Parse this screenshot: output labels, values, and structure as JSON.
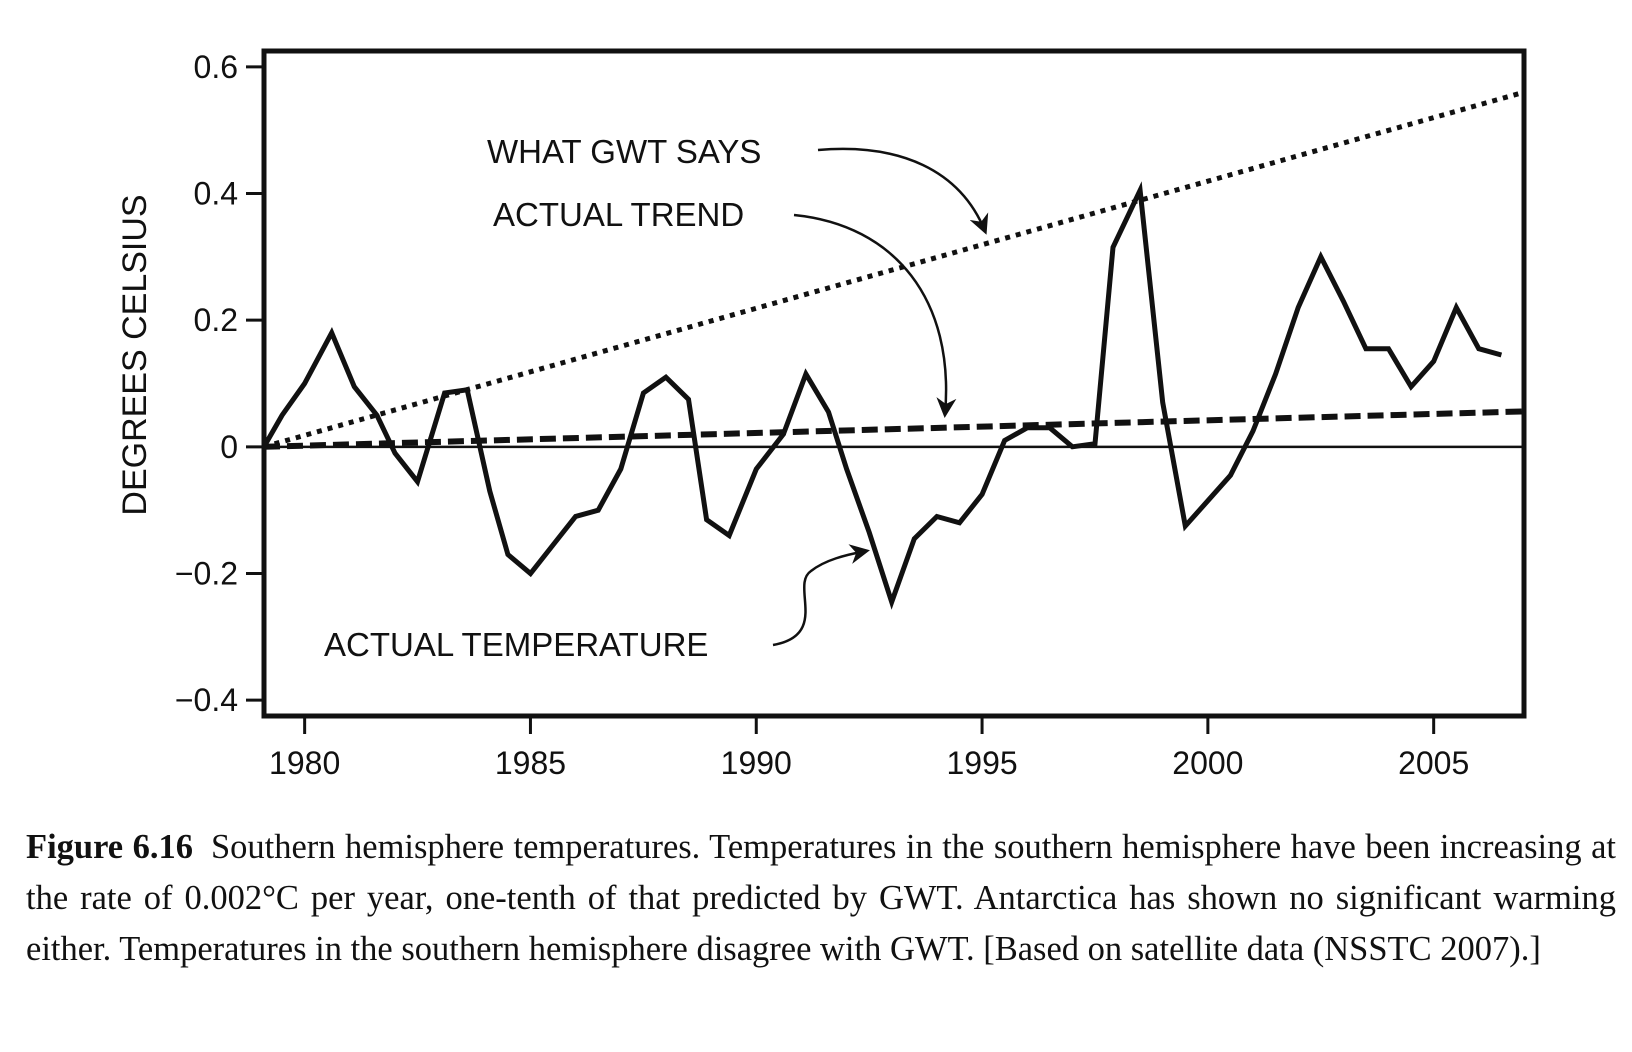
{
  "chart_data": {
    "type": "line",
    "title": "",
    "xlabel": "",
    "ylabel": "DEGREES CELSIUS",
    "xlim": [
      1979.1,
      2007.0
    ],
    "ylim": [
      -0.425,
      0.625
    ],
    "xticks": [
      1980,
      1985,
      1990,
      1995,
      2000,
      2005
    ],
    "xtick_labels": [
      "1980",
      "1985",
      "1990",
      "1995",
      "2000",
      "2005"
    ],
    "yticks": [
      0.6,
      0.4,
      0.2,
      0,
      -0.2,
      -0.4
    ],
    "ytick_labels": [
      "0.6",
      "0.4",
      "0.2",
      "0",
      "−0.2",
      "−0.4"
    ],
    "grid": false,
    "zero_line": true,
    "series": [
      {
        "name": "ACTUAL TEMPERATURE",
        "style": "solid",
        "x": [
          1979.1,
          1979.5,
          1980.0,
          1980.6,
          1981.1,
          1981.6,
          1982.0,
          1982.5,
          1983.1,
          1983.6,
          1984.1,
          1984.5,
          1985.0,
          1985.5,
          1986.0,
          1986.5,
          1987.0,
          1987.5,
          1988.0,
          1988.5,
          1988.9,
          1989.4,
          1990.0,
          1990.6,
          1991.1,
          1991.6,
          1992.0,
          1992.5,
          1993.0,
          1993.5,
          1994.0,
          1994.5,
          1995.0,
          1995.5,
          1996.0,
          1996.5,
          1997.0,
          1997.5,
          1997.9,
          1998.5,
          1999.0,
          1999.5,
          2000.0,
          2000.5,
          2001.0,
          2001.5,
          2002.0,
          2002.5,
          2003.0,
          2003.5,
          2004.0,
          2004.5,
          2005.0,
          2005.5,
          2006.0,
          2006.5
        ],
        "y": [
          0.0,
          0.05,
          0.1,
          0.18,
          0.095,
          0.05,
          -0.01,
          -0.055,
          0.085,
          0.09,
          -0.07,
          -0.17,
          -0.2,
          -0.155,
          -0.11,
          -0.1,
          -0.035,
          0.085,
          0.11,
          0.075,
          -0.115,
          -0.14,
          -0.035,
          0.02,
          0.115,
          0.055,
          -0.035,
          -0.135,
          -0.245,
          -0.145,
          -0.11,
          -0.12,
          -0.075,
          0.01,
          0.03,
          0.03,
          0.0,
          0.005,
          0.315,
          0.405,
          0.07,
          -0.125,
          -0.085,
          -0.045,
          0.025,
          0.115,
          0.22,
          0.3,
          0.23,
          0.155,
          0.155,
          0.095,
          0.135,
          0.22,
          0.155,
          0.145
        ]
      },
      {
        "name": "ACTUAL TREND",
        "style": "dashed",
        "x": [
          1979.1,
          2007.0
        ],
        "y": [
          0.0,
          0.056
        ]
      },
      {
        "name": "WHAT GWT SAYS",
        "style": "dotted",
        "x": [
          1979.1,
          2007.0
        ],
        "y": [
          0.0,
          0.56
        ]
      }
    ],
    "annotations": [
      {
        "text": "WHAT GWT SAYS",
        "points_to": "WHAT GWT SAYS"
      },
      {
        "text": "ACTUAL TREND",
        "points_to": "ACTUAL TREND"
      },
      {
        "text": "ACTUAL TEMPERATURE",
        "points_to": "ACTUAL TEMPERATURE"
      }
    ]
  },
  "caption": {
    "label": "Figure 6.16",
    "text": "Southern hemisphere temperatures. Temperatures in the southern hemisphere have been increasing at the rate of 0.002°C per year, one-tenth of that predicted by GWT. Antarctica has shown no significant warming either. Temperatures in the southern hemisphere disagree with GWT. [Based on satellite data (NSSTC 2007).]"
  }
}
